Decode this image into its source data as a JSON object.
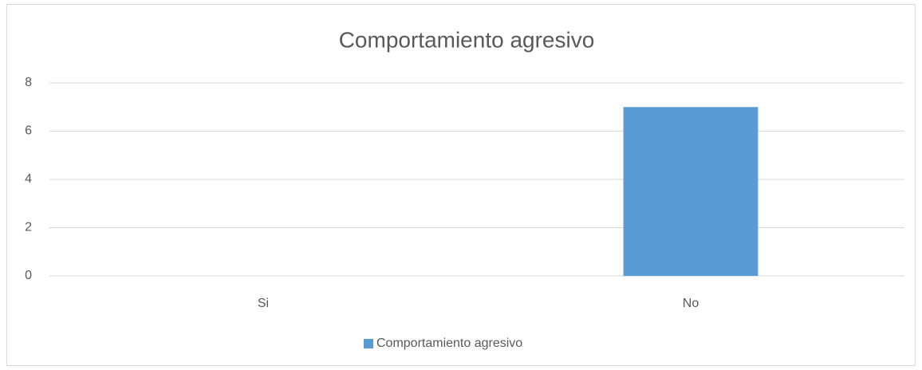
{
  "chart_data": {
    "type": "bar",
    "title": "Comportamiento agresivo",
    "categories": [
      "Si",
      "No"
    ],
    "series": [
      {
        "name": "Comportamiento agresivo",
        "color": "#5b9bd5",
        "values": [
          0,
          7
        ]
      }
    ],
    "ylim": [
      0,
      8
    ],
    "yticks": [
      0,
      2,
      4,
      6,
      8
    ],
    "grid": true,
    "legend": "bottom"
  }
}
